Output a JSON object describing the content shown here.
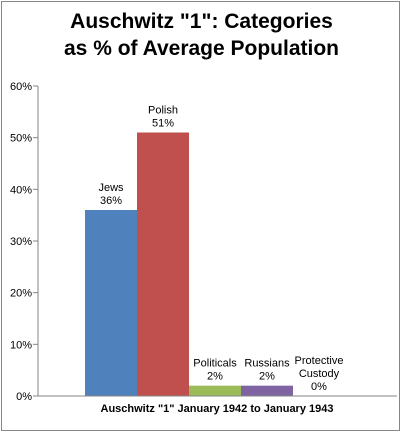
{
  "chart_data": {
    "type": "bar",
    "title_lines": [
      "Auschwitz \"1\": Categories",
      "as % of Average Population"
    ],
    "xlabel": "Auschwitz \"1\" January 1942 to January 1943",
    "ylabel": "",
    "ylim": [
      0,
      60
    ],
    "yticks": [
      "0%",
      "10%",
      "20%",
      "30%",
      "40%",
      "50%",
      "60%"
    ],
    "grid": false,
    "legend": "none",
    "bars": [
      {
        "label_lines": [
          "Jews",
          "36%"
        ],
        "value": 36,
        "color": "#4f81bd"
      },
      {
        "label_lines": [
          "Polish",
          "51%"
        ],
        "value": 51,
        "color": "#c0504d"
      },
      {
        "label_lines": [
          "Politicals",
          "2%"
        ],
        "value": 2,
        "color": "#9bbb59"
      },
      {
        "label_lines": [
          "Russians",
          "2%"
        ],
        "value": 2,
        "color": "#8064a2"
      },
      {
        "label_lines": [
          "Protective",
          "Custody",
          "0%"
        ],
        "value": 0,
        "color": "#4bacc6"
      }
    ]
  }
}
